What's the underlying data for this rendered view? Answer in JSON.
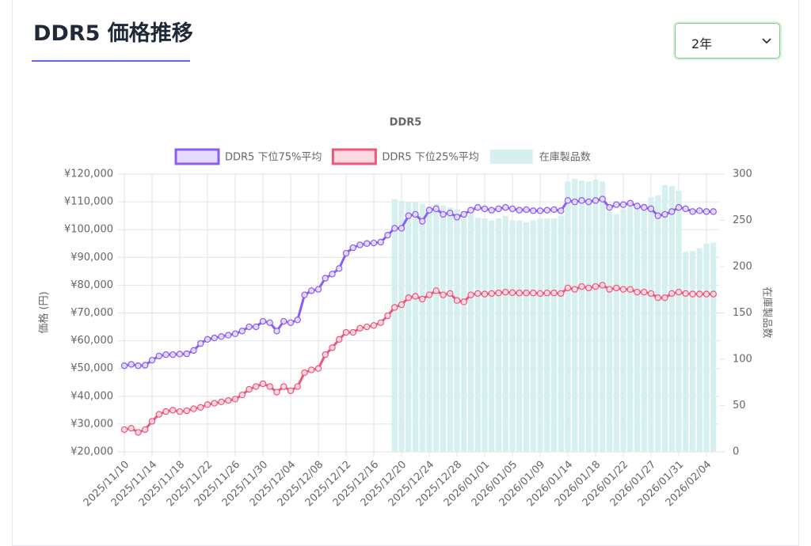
{
  "header": {
    "title": "DDR5 価格推移",
    "select": "2年"
  },
  "chart_data": {
    "type": "combo",
    "title": "DDR5",
    "categories": [
      "2025/11/10",
      null,
      null,
      null,
      "2025/11/14",
      null,
      null,
      null,
      "2025/11/18",
      null,
      null,
      null,
      "2025/11/22",
      null,
      null,
      null,
      "2025/11/26",
      null,
      null,
      null,
      "2025/11/30",
      null,
      null,
      null,
      "2025/12/04",
      null,
      null,
      null,
      "2025/12/08",
      null,
      null,
      null,
      "2025/12/12",
      null,
      null,
      null,
      "2025/12/16",
      null,
      null,
      null,
      "2025/12/20",
      null,
      null,
      null,
      "2025/12/24",
      null,
      null,
      null,
      "2025/12/28",
      null,
      null,
      null,
      "2026/01/01",
      null,
      null,
      null,
      "2026/01/05",
      null,
      null,
      null,
      "2026/01/09",
      null,
      null,
      null,
      "2026/01/14",
      null,
      null,
      null,
      "2026/01/18",
      null,
      null,
      null,
      "2026/01/22",
      null,
      null,
      null,
      "2026/01/27",
      null,
      null,
      null,
      "2026/01/31",
      null,
      null,
      null,
      "2026/02/04",
      null
    ],
    "series": [
      {
        "name": "DDR5 下位75%平均",
        "type": "line",
        "color": "#8b5cf6",
        "fill": "#e4dafd",
        "values": [
          51000,
          51500,
          51000,
          51200,
          53000,
          54500,
          55000,
          55000,
          55200,
          55300,
          56500,
          59000,
          60500,
          61000,
          61500,
          62000,
          62500,
          63500,
          65000,
          65000,
          67000,
          66500,
          63500,
          67000,
          66500,
          67500,
          76500,
          78000,
          78500,
          82500,
          84000,
          86000,
          91500,
          93500,
          94500,
          95000,
          95200,
          95500,
          98000,
          100500,
          100500,
          105000,
          105500,
          103000,
          107000,
          107500,
          105500,
          106000,
          104500,
          105500,
          107000,
          108000,
          107500,
          107000,
          107500,
          108000,
          107500,
          107000,
          107200,
          106800,
          106800,
          107000,
          107200,
          106800,
          110500,
          110000,
          110500,
          110000,
          110500,
          111000,
          108000,
          109000,
          109000,
          109500,
          108500,
          108000,
          107500,
          105000,
          105500,
          106500,
          108000,
          107500,
          106500,
          106800,
          106500,
          106500
        ]
      },
      {
        "name": "DDR5 下位25%平均",
        "type": "line",
        "color": "#f0557a",
        "fill": "#fdd9e2",
        "values": [
          28000,
          28500,
          27000,
          28000,
          31000,
          33500,
          34500,
          35000,
          34500,
          34800,
          35500,
          36000,
          37000,
          37500,
          38000,
          38500,
          39000,
          40500,
          42500,
          43500,
          44500,
          43500,
          41500,
          43500,
          42000,
          43500,
          48500,
          49500,
          50000,
          55000,
          57500,
          60500,
          63000,
          63000,
          64500,
          65000,
          65500,
          66500,
          69000,
          72000,
          73000,
          75500,
          76000,
          75000,
          76500,
          78000,
          76500,
          77000,
          74500,
          74000,
          76500,
          77000,
          76800,
          77000,
          77200,
          77500,
          77300,
          77200,
          77200,
          77200,
          77000,
          77200,
          77200,
          77000,
          79000,
          78500,
          79500,
          79000,
          79500,
          80000,
          78500,
          79000,
          78500,
          78500,
          77500,
          77500,
          77000,
          75500,
          75500,
          77000,
          77500,
          77000,
          76800,
          76800,
          76800,
          76800
        ]
      },
      {
        "name": "在庫製品数",
        "type": "bar",
        "axis": "y2",
        "color": "#d6f0ef",
        "values": [
          null,
          null,
          null,
          null,
          null,
          null,
          null,
          null,
          null,
          null,
          null,
          null,
          null,
          null,
          null,
          null,
          null,
          null,
          null,
          null,
          null,
          null,
          null,
          null,
          null,
          null,
          null,
          null,
          null,
          null,
          null,
          null,
          null,
          null,
          null,
          null,
          null,
          null,
          null,
          273,
          271,
          270,
          270,
          268,
          265,
          268,
          266,
          264,
          262,
          260,
          257,
          253,
          252,
          250,
          252,
          255,
          250,
          250,
          248,
          250,
          252,
          252,
          252,
          255,
          292,
          295,
          293,
          292,
          294,
          292,
          260,
          257,
          262,
          265,
          266,
          268,
          275,
          277,
          288,
          287,
          282,
          216,
          217,
          220,
          225,
          226
        ]
      }
    ],
    "ylabel": "価格 (円)",
    "y2label": "在庫製品数",
    "ylim": [
      20000,
      120000
    ],
    "yticks": [
      {
        "value": 20000,
        "label": "¥20,000"
      },
      {
        "value": 30000,
        "label": "¥30,000"
      },
      {
        "value": 40000,
        "label": "¥40,000"
      },
      {
        "value": 50000,
        "label": "¥50,000"
      },
      {
        "value": 60000,
        "label": "¥60,000"
      },
      {
        "value": 70000,
        "label": "¥70,000"
      },
      {
        "value": 80000,
        "label": "¥80,000"
      },
      {
        "value": 90000,
        "label": "¥90,000"
      },
      {
        "value": 100000,
        "label": "¥100,000"
      },
      {
        "value": 110000,
        "label": "¥110,000"
      },
      {
        "value": 120000,
        "label": "¥120,000"
      }
    ],
    "y2lim": [
      0,
      300
    ],
    "y2ticks": [
      0,
      50,
      100,
      150,
      200,
      250,
      300
    ],
    "grid": true,
    "legend": "top"
  }
}
